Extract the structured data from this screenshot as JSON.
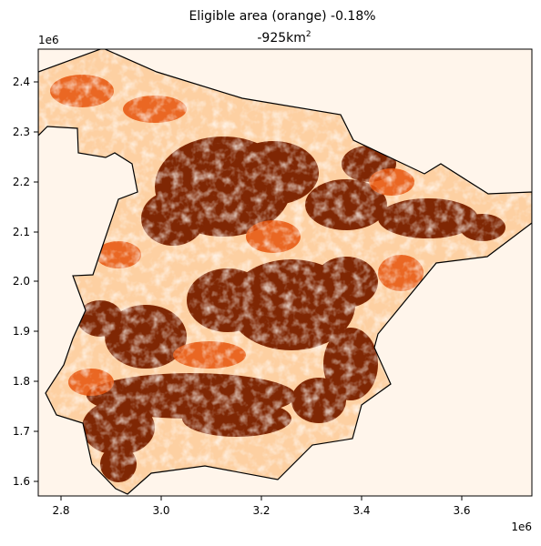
{
  "title": {
    "line1": "Eligible area (orange) -0.18%",
    "line2_value": "-925km",
    "line2_exponent": "2"
  },
  "axes": {
    "x_offset_label": "1e6",
    "y_offset_label": "1e6",
    "x_ticks": [
      "2.8",
      "3.0",
      "3.2",
      "3.4",
      "3.6"
    ],
    "y_ticks": [
      "2.4",
      "2.3",
      "2.2",
      "2.1",
      "2.0",
      "1.9",
      "1.8",
      "1.7",
      "1.6"
    ]
  },
  "colors": {
    "background_area": "#fff5eb",
    "eligible_light": "#fdd0a2",
    "eligible_mid": "#e6550d",
    "eligible_dark": "#7f2704",
    "boundary": "#000000"
  }
}
